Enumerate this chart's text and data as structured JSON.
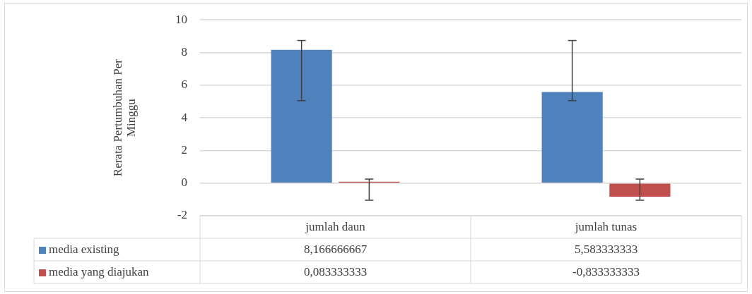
{
  "chart_data": {
    "type": "bar",
    "ylabel": "Rerata Pertumbuhan Per Minggu",
    "categories": [
      "jumlah daun",
      "jumlah tunas"
    ],
    "series": [
      {
        "name": "media existing",
        "color": "#4f81bd",
        "values": [
          8.166666667,
          5.583333333
        ],
        "value_labels": [
          "8,166666667",
          "5,583333333"
        ],
        "errors": [
          [
            5.05,
            8.73
          ],
          [
            5.05,
            8.73
          ]
        ]
      },
      {
        "name": "media yang diajukan",
        "color": "#c0504d",
        "values": [
          0.083333333,
          -0.833333333
        ],
        "value_labels": [
          "0,083333333",
          "-0,833333333"
        ],
        "errors": [
          [
            -1.05,
            0.25
          ],
          [
            -1.05,
            0.25
          ]
        ]
      }
    ],
    "ylim": [
      -2,
      10
    ],
    "yticks": [
      -2,
      0,
      2,
      4,
      6,
      8,
      10
    ],
    "grid": "y",
    "legend": "bottom"
  }
}
